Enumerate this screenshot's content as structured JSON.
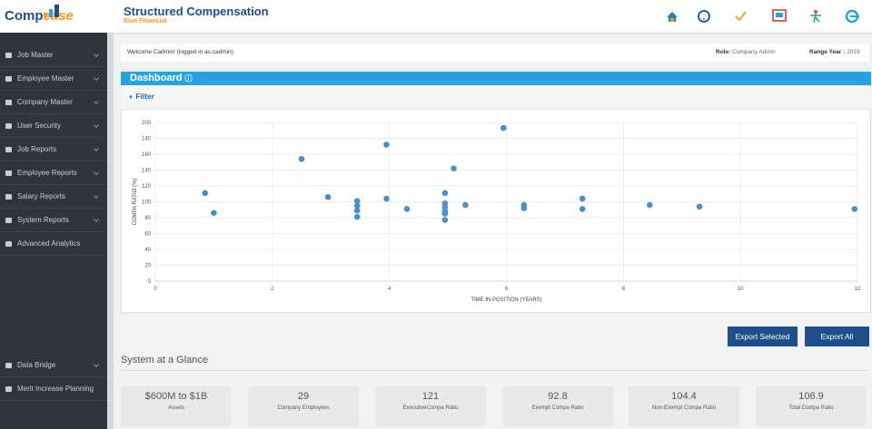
{
  "header": {
    "logo": [
      "Comp",
      "ease"
    ],
    "title": "Structured Compensation",
    "subtitle": "Blue Financial"
  },
  "sidebar": {
    "items": [
      "Job Master",
      "Employee Master",
      "Company Master",
      "User Security",
      "Job Reports",
      "Employee Reports",
      "Salary Reports",
      "System Reports",
      "Advanced Analytics"
    ],
    "bottom_items": [
      "Data Bridge",
      "Merit Increase Planning"
    ]
  },
  "welcome": {
    "text": "Welcome Cadmin! (logged in as cadmin)",
    "role_label": "Role:",
    "role": "Company Admin",
    "year_label": "Range Year :",
    "year": "2019"
  },
  "dashboard": {
    "title": "Dashboard",
    "filter": "Filter"
  },
  "chart_data": {
    "type": "scatter",
    "x_label": "TIME IN POSITION (YEARS)",
    "y_label": "COMPA RATIO (%)",
    "xlim": [
      0,
      12
    ],
    "xticks": [
      0,
      2,
      4,
      6,
      8,
      10,
      12
    ],
    "ylim": [
      0,
      200
    ],
    "yticks": [
      0,
      20,
      40,
      60,
      80,
      100,
      120,
      140,
      160,
      180,
      200
    ],
    "grid": true,
    "color": "#4a90c8",
    "x": [
      0.85,
      1.0,
      2.5,
      2.95,
      3.45,
      3.45,
      3.45,
      3.45,
      3.95,
      3.95,
      4.3,
      4.95,
      4.95,
      4.95,
      4.95,
      4.95,
      4.95,
      5.1,
      5.3,
      5.95,
      6.3,
      6.3,
      7.3,
      7.3,
      8.45,
      9.3,
      11.95
    ],
    "values": [
      111,
      86,
      154,
      106,
      101,
      95,
      89,
      81,
      104,
      172,
      91,
      111,
      98,
      93,
      88,
      85,
      77,
      142,
      96,
      193,
      96,
      92,
      104,
      91,
      96,
      94,
      91
    ]
  },
  "buttons": [
    "Export Selected",
    "Export All"
  ],
  "glance": {
    "title": "System at a Glance",
    "cards": [
      {
        "value": "$600M to $1B",
        "label": "Assets"
      },
      {
        "value": "29",
        "label": "Company Employees"
      },
      {
        "value": "121",
        "label": "ExecutiveCompa Ratio"
      },
      {
        "value": "92.8",
        "label": "Exempt Compa Ratio"
      },
      {
        "value": "104.4",
        "label": "Non-Exempt Compa Ratio"
      },
      {
        "value": "106.9",
        "label": "Total Compa Ratio"
      }
    ]
  }
}
